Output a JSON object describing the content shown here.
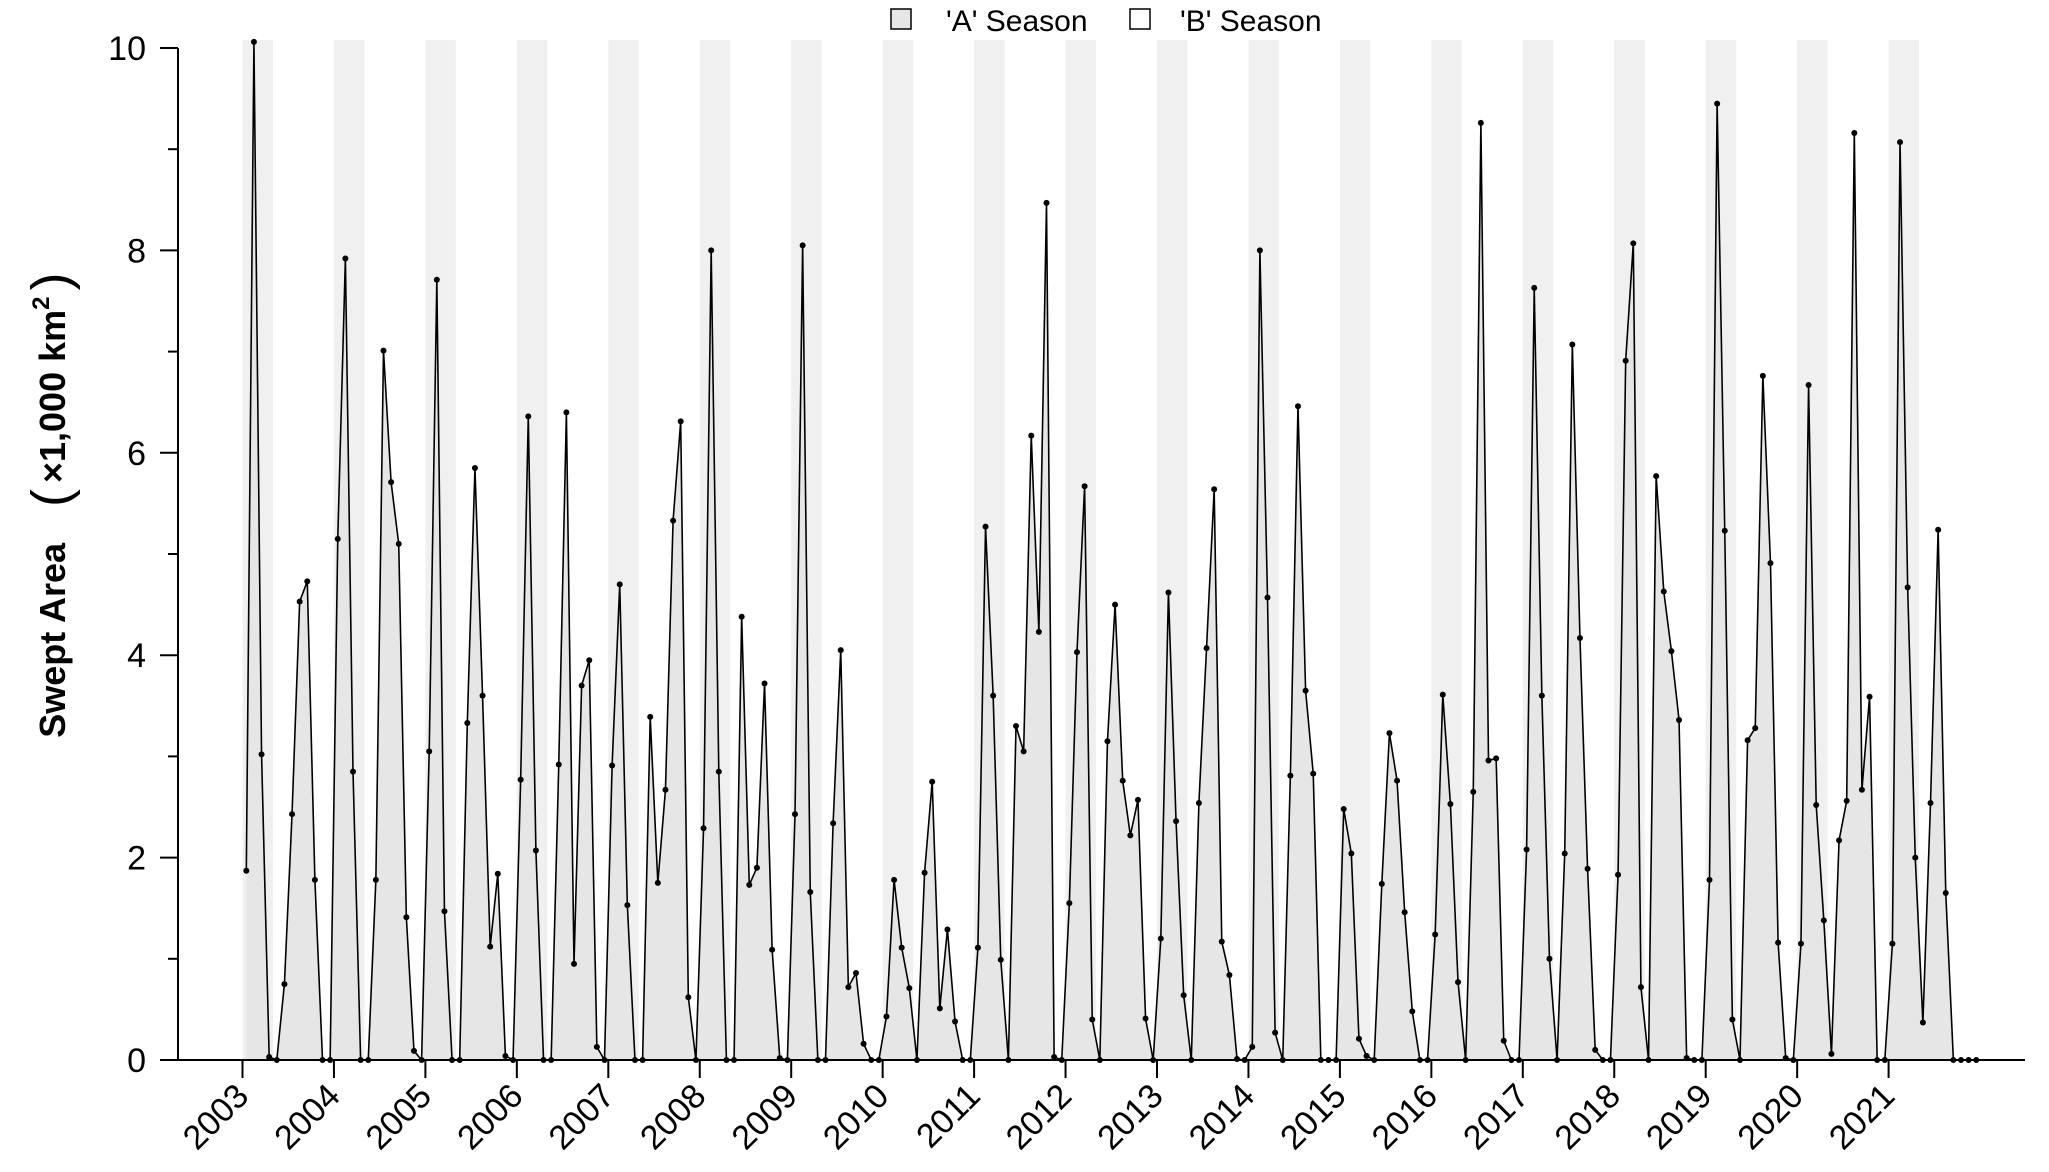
{
  "chart_data": {
    "type": "area",
    "title": "",
    "xlabel": "",
    "ylabel": "Swept Area",
    "ylabel_unit_prefix": "×1,000 km",
    "ylabel_unit_superscript": "2",
    "ylim": [
      0,
      10
    ],
    "yticks": [
      "0",
      "2",
      "4",
      "6",
      "8",
      "10"
    ],
    "xticks": [
      "2003",
      "2004",
      "2005",
      "2006",
      "2007",
      "2008",
      "2009",
      "2010",
      "2011",
      "2012",
      "2013",
      "2014",
      "2015",
      "2016",
      "2017",
      "2018",
      "2019",
      "2020",
      "2021"
    ],
    "x_start_year": 2003,
    "legend": {
      "placement": "top-center",
      "entries": [
        {
          "label": "'A' Season",
          "fill": "#e6e6e6"
        },
        {
          "label": "'B' Season",
          "fill": "#ffffff"
        }
      ]
    },
    "seasons": [
      {
        "name": "'A' Season",
        "months": [
          1,
          2,
          3,
          4
        ],
        "shade": "#f0f0f0"
      },
      {
        "name": "'B' Season",
        "months": [
          5,
          6,
          7,
          8,
          9,
          10,
          11,
          12
        ],
        "shade": "#ffffff"
      }
    ],
    "series": [
      {
        "fill": "#e6e6e6",
        "stroke": "#000000",
        "values": [
          1.87,
          10.06,
          3.02,
          0.03,
          0,
          0.75,
          2.43,
          4.53,
          4.73,
          1.78,
          0,
          0,
          5.15,
          7.92,
          2.85,
          0,
          0,
          1.78,
          7.01,
          5.71,
          5.1,
          1.41,
          0.09,
          0,
          3.05,
          7.71,
          1.47,
          0,
          0,
          3.33,
          5.85,
          3.6,
          1.12,
          1.84,
          0.04,
          0,
          2.77,
          6.36,
          2.07,
          0,
          0,
          2.92,
          6.4,
          0.95,
          3.7,
          3.95,
          0.13,
          0,
          2.91,
          4.7,
          1.53,
          0,
          0,
          3.39,
          1.75,
          2.67,
          5.33,
          6.31,
          0.62,
          0,
          2.29,
          8.0,
          2.85,
          0,
          0,
          4.38,
          1.73,
          1.9,
          3.72,
          1.09,
          0.02,
          0,
          2.43,
          8.05,
          1.66,
          0,
          0,
          2.34,
          4.05,
          0.72,
          0.86,
          0.16,
          0,
          0,
          0.43,
          1.78,
          1.11,
          0.71,
          0,
          1.85,
          2.75,
          0.51,
          1.29,
          0.38,
          0,
          0,
          1.11,
          5.27,
          3.6,
          0.99,
          0,
          3.3,
          3.05,
          6.17,
          4.23,
          8.47,
          0.03,
          0,
          1.55,
          4.03,
          5.67,
          0.4,
          0,
          3.15,
          4.5,
          2.76,
          2.22,
          2.57,
          0.41,
          0,
          1.2,
          4.62,
          2.36,
          0.64,
          0,
          2.54,
          4.07,
          5.64,
          1.17,
          0.84,
          0.01,
          0,
          0.13,
          8.0,
          4.57,
          0.27,
          0,
          2.81,
          6.46,
          3.65,
          2.83,
          0,
          0,
          0,
          2.48,
          2.04,
          0.21,
          0.04,
          0,
          1.74,
          3.23,
          2.76,
          1.46,
          0.48,
          0,
          0,
          1.24,
          3.61,
          2.53,
          0.77,
          0,
          2.65,
          9.26,
          2.96,
          2.98,
          0.19,
          0,
          0,
          2.08,
          7.63,
          3.6,
          1.0,
          0,
          2.04,
          7.07,
          4.17,
          1.89,
          0.1,
          0,
          0,
          1.83,
          6.91,
          8.07,
          0.72,
          0,
          5.77,
          4.63,
          4.04,
          3.36,
          0.02,
          0,
          0,
          1.78,
          9.45,
          5.23,
          0.4,
          0,
          3.16,
          3.28,
          6.76,
          4.91,
          1.16,
          0.02,
          0,
          1.15,
          6.67,
          2.52,
          1.38,
          0.06,
          2.17,
          2.56,
          9.16,
          2.67,
          3.59,
          0,
          0,
          1.15,
          9.07,
          4.67,
          2.0,
          0.37,
          2.54,
          5.24,
          1.65,
          0,
          0,
          0,
          0
        ]
      }
    ]
  }
}
